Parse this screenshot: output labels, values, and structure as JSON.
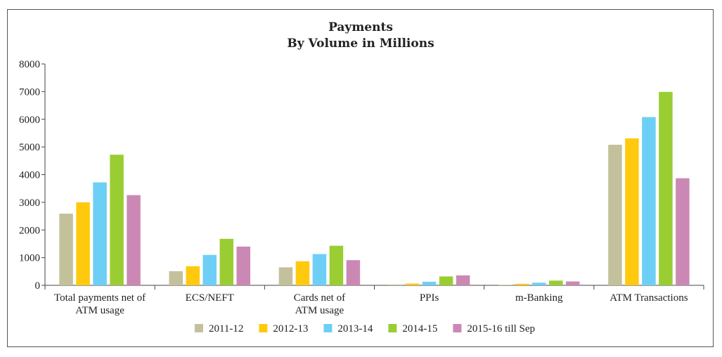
{
  "chart_data": {
    "type": "bar",
    "title": "Payments",
    "subtitle": "By Volume in Millions",
    "xlabel": "",
    "ylabel": "",
    "ylim": [
      0,
      8000
    ],
    "yticks": [
      0,
      1000,
      2000,
      3000,
      4000,
      5000,
      6000,
      7000,
      8000
    ],
    "grid": false,
    "legend_position": "bottom",
    "categories": [
      [
        "Total payments net of",
        "ATM usage"
      ],
      [
        "ECS/NEFT"
      ],
      [
        "Cards net of",
        "ATM usage"
      ],
      [
        "PPIs"
      ],
      [
        "m-Banking"
      ],
      [
        "ATM Transactions"
      ]
    ],
    "series": [
      {
        "name": "2011-12",
        "color": "#c3c19b",
        "values": [
          2590,
          510,
          650,
          30,
          20,
          5080
        ]
      },
      {
        "name": "2012-13",
        "color": "#ffc90e",
        "values": [
          3000,
          690,
          870,
          65,
          55,
          5310
        ]
      },
      {
        "name": "2013-14",
        "color": "#6ecff6",
        "values": [
          3720,
          1100,
          1130,
          130,
          95,
          6080
        ]
      },
      {
        "name": "2014-15",
        "color": "#9acd32",
        "values": [
          4720,
          1680,
          1430,
          320,
          170,
          6990
        ]
      },
      {
        "name": "2015-16 till Sep",
        "color": "#cc88b4",
        "values": [
          3260,
          1400,
          910,
          360,
          140,
          3870
        ]
      }
    ]
  }
}
